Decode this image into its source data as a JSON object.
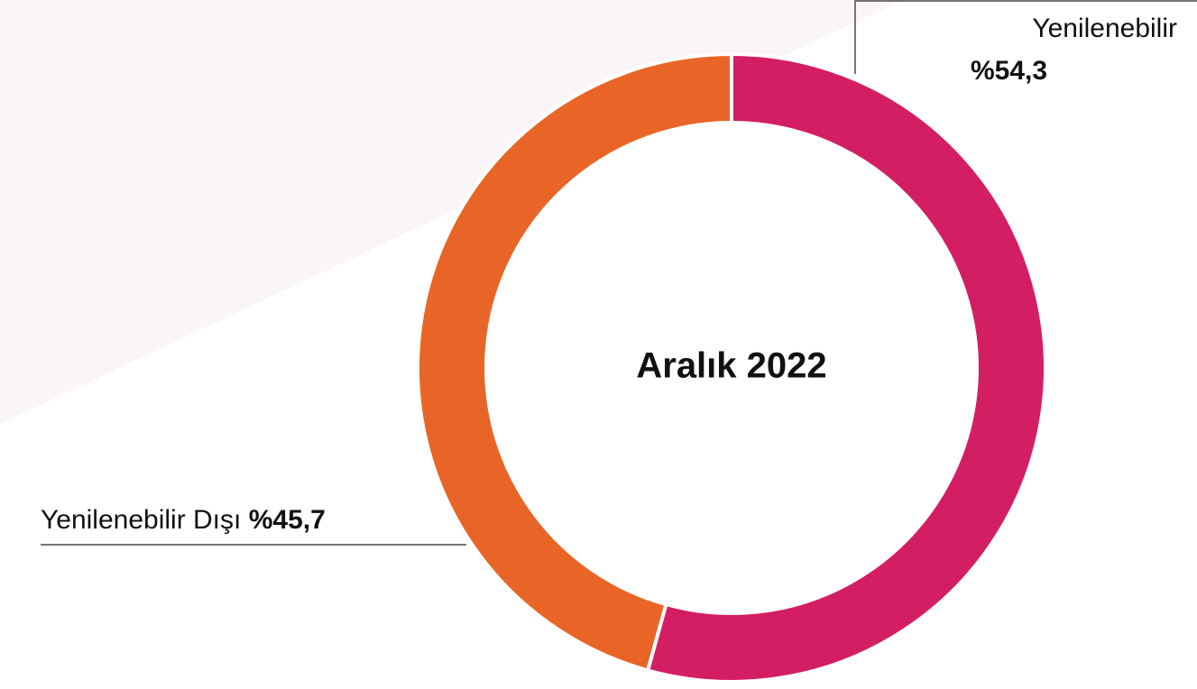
{
  "chart_data": {
    "type": "pie",
    "donut": true,
    "title": "Aralık 2022",
    "categories": [
      "Yenilenebilir",
      "Yenilenebilir Dışı"
    ],
    "values": [
      54.3,
      45.7
    ],
    "value_labels": [
      "%54,3",
      "%45,7"
    ],
    "colors": [
      "#d41e63",
      "#e96527"
    ]
  }
}
